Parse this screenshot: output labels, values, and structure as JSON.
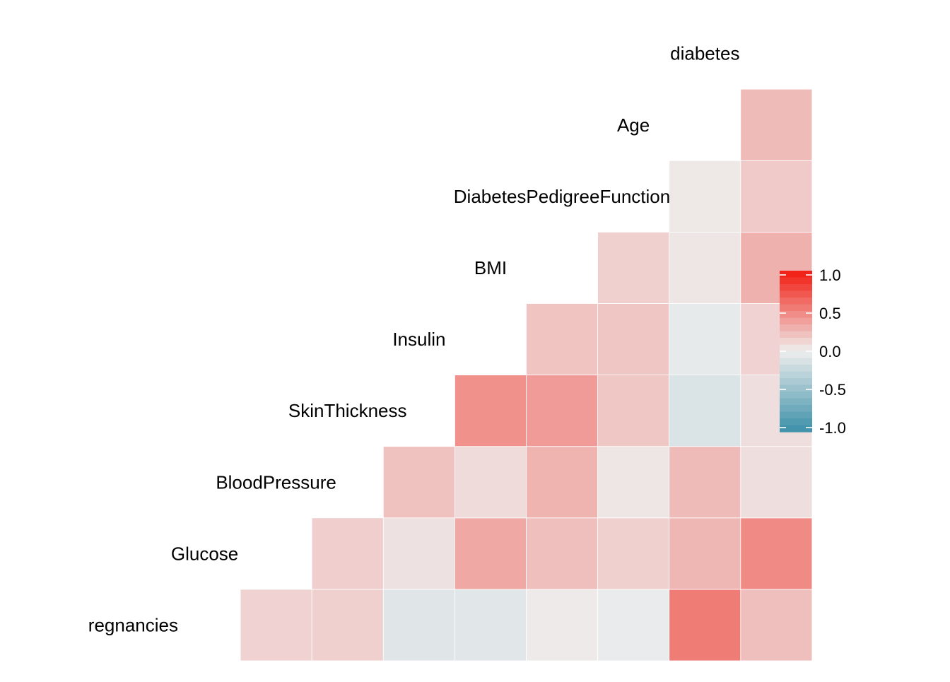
{
  "chart_data": {
    "type": "heatmap",
    "layout": "lower-triangle correlation matrix",
    "variables": [
      "regnancies",
      "Glucose",
      "BloodPressure",
      "SkinThickness",
      "Insulin",
      "BMI",
      "DiabetesPedigreeFunction",
      "Age",
      "diabetes"
    ],
    "cells": [
      {
        "row": "Glucose",
        "col": "regnancies",
        "value": 0.13
      },
      {
        "row": "BloodPressure",
        "col": "regnancies",
        "value": 0.14
      },
      {
        "row": "BloodPressure",
        "col": "Glucose",
        "value": 0.15
      },
      {
        "row": "SkinThickness",
        "col": "regnancies",
        "value": -0.08
      },
      {
        "row": "SkinThickness",
        "col": "Glucose",
        "value": 0.06
      },
      {
        "row": "SkinThickness",
        "col": "BloodPressure",
        "value": 0.21
      },
      {
        "row": "Insulin",
        "col": "regnancies",
        "value": -0.07
      },
      {
        "row": "Insulin",
        "col": "Glucose",
        "value": 0.33
      },
      {
        "row": "Insulin",
        "col": "BloodPressure",
        "value": 0.09
      },
      {
        "row": "Insulin",
        "col": "SkinThickness",
        "value": 0.44
      },
      {
        "row": "BMI",
        "col": "regnancies",
        "value": 0.02
      },
      {
        "row": "BMI",
        "col": "Glucose",
        "value": 0.22
      },
      {
        "row": "BMI",
        "col": "BloodPressure",
        "value": 0.28
      },
      {
        "row": "BMI",
        "col": "SkinThickness",
        "value": 0.39
      },
      {
        "row": "BMI",
        "col": "Insulin",
        "value": 0.2
      },
      {
        "row": "DiabetesPedigreeFunction",
        "col": "regnancies",
        "value": -0.03
      },
      {
        "row": "DiabetesPedigreeFunction",
        "col": "Glucose",
        "value": 0.14
      },
      {
        "row": "DiabetesPedigreeFunction",
        "col": "BloodPressure",
        "value": 0.04
      },
      {
        "row": "DiabetesPedigreeFunction",
        "col": "SkinThickness",
        "value": 0.18
      },
      {
        "row": "DiabetesPedigreeFunction",
        "col": "Insulin",
        "value": 0.19
      },
      {
        "row": "DiabetesPedigreeFunction",
        "col": "BMI",
        "value": 0.14
      },
      {
        "row": "Age",
        "col": "regnancies",
        "value": 0.54
      },
      {
        "row": "Age",
        "col": "Glucose",
        "value": 0.26
      },
      {
        "row": "Age",
        "col": "BloodPressure",
        "value": 0.24
      },
      {
        "row": "Age",
        "col": "SkinThickness",
        "value": -0.11
      },
      {
        "row": "Age",
        "col": "Insulin",
        "value": -0.04
      },
      {
        "row": "Age",
        "col": "BMI",
        "value": 0.04
      },
      {
        "row": "Age",
        "col": "DiabetesPedigreeFunction",
        "value": 0.03
      },
      {
        "row": "diabetes",
        "col": "regnancies",
        "value": 0.22
      },
      {
        "row": "diabetes",
        "col": "Glucose",
        "value": 0.47
      },
      {
        "row": "diabetes",
        "col": "BloodPressure",
        "value": 0.07
      },
      {
        "row": "diabetes",
        "col": "SkinThickness",
        "value": 0.07
      },
      {
        "row": "diabetes",
        "col": "Insulin",
        "value": 0.13
      },
      {
        "row": "diabetes",
        "col": "BMI",
        "value": 0.29
      },
      {
        "row": "diabetes",
        "col": "DiabetesPedigreeFunction",
        "value": 0.17
      },
      {
        "row": "diabetes",
        "col": "Age",
        "value": 0.24
      }
    ],
    "color_scale": {
      "min": -1.0,
      "mid": 0.0,
      "max": 1.0,
      "low_color": "#3A8FA8",
      "mid_color": "#EEEEEE",
      "high_color": "#F21A0F",
      "ticks": [
        "1.0",
        "0.5",
        "0.0",
        "-0.5",
        "-1.0"
      ]
    },
    "legend_position": "right",
    "grid": false,
    "title": ""
  }
}
